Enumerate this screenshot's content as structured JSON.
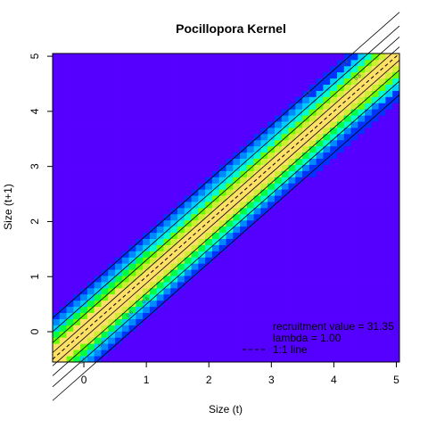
{
  "chart_data": {
    "type": "heatmap",
    "title": "Pocillopora Kernel",
    "xlabel": "Size (t)",
    "ylabel": "Size (t+1)",
    "xlim": [
      -0.5,
      5.05
    ],
    "ylim": [
      -0.55,
      5.05
    ],
    "xticks": [
      "0",
      "1",
      "2",
      "3",
      "4",
      "5"
    ],
    "yticks": [
      "0",
      "1",
      "2",
      "3",
      "4",
      "5"
    ],
    "contour_levels": [
      "0.1",
      "0.2",
      "0.4",
      "0.6",
      "0.8"
    ],
    "colors": {
      "background": "#5500ff",
      "ramp": [
        "#5500ff",
        "#0033ff",
        "#0088ff",
        "#00ccff",
        "#00ffcc",
        "#00ff44",
        "#66ff00",
        "#ccee33",
        "#ffe066"
      ]
    },
    "legend": {
      "position": "bottom-right",
      "entries": [
        {
          "label": "recruitment value = 31.35"
        },
        {
          "label": "lambda = 1.00"
        },
        {
          "label": "1:1 line",
          "style": "dashed"
        }
      ]
    }
  }
}
